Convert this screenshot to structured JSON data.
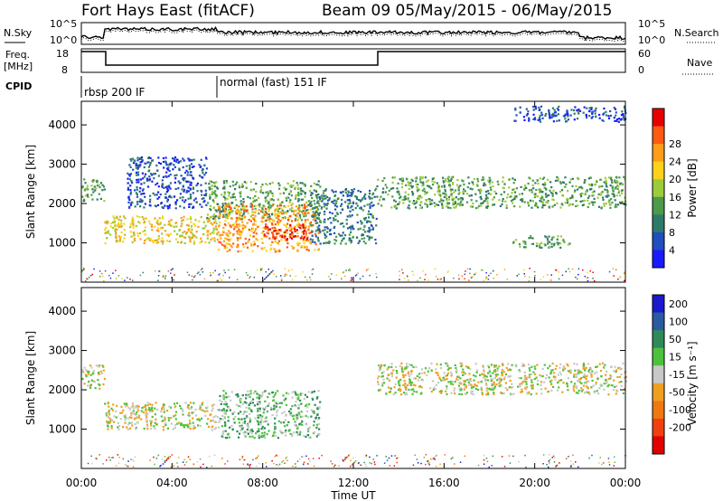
{
  "header": {
    "station": "Fort Hays East (fitACF)",
    "beam_info": "Beam 09 05/May/2015 - 06/May/2015"
  },
  "panels": {
    "nsky_label": "N.Sky",
    "nsearch_label": "N.Search",
    "freq_label_top": "Freq.",
    "freq_label_unit": "[MHz]",
    "nave_label": "Nave",
    "cpid_label": "CPID",
    "nsky_ticks": [
      "10^5",
      "10^0"
    ],
    "nsearch_ticks": [
      "10^5",
      "10^0"
    ],
    "freq_ticks": [
      "18",
      "8"
    ],
    "nave_ticks": [
      "60",
      "0"
    ],
    "cpid_modes": [
      {
        "label": "rbsp 200 IF",
        "start_h": 0,
        "end_h": 6
      },
      {
        "label": "normal (fast) 151 IF",
        "start_h": 6,
        "end_h": 24
      }
    ]
  },
  "chart_data": [
    {
      "type": "heatmap",
      "title": "Power",
      "ylabel": "Slant Range [km]",
      "xlabel": "",
      "xlim": [
        0,
        24
      ],
      "ylim": [
        0,
        4600
      ],
      "y_ticks": [
        1000,
        2000,
        3000,
        4000
      ],
      "colorbar": {
        "label": "Power [dB]",
        "ticks": [
          "4",
          "8",
          "12",
          "16",
          "20",
          "24",
          "28"
        ],
        "colors": [
          "#1a1aff",
          "#1f4fbf",
          "#2e7a6a",
          "#4a9a4a",
          "#9ccb3b",
          "#ffd21a",
          "#ff9c1a",
          "#ff5a10",
          "#e60000"
        ]
      },
      "regions": [
        {
          "x": [
            0.0,
            1.0
          ],
          "y": [
            2050,
            2650
          ],
          "level": "mid"
        },
        {
          "x": [
            1.0,
            6.0
          ],
          "y": [
            1000,
            1700
          ],
          "level": "mid-high"
        },
        {
          "x": [
            2.0,
            5.5
          ],
          "y": [
            1900,
            3200
          ],
          "level": "low"
        },
        {
          "x": [
            5.5,
            10.5
          ],
          "y": [
            1600,
            2600
          ],
          "level": "mid"
        },
        {
          "x": [
            6.0,
            10.5
          ],
          "y": [
            800,
            2000
          ],
          "level": "high"
        },
        {
          "x": [
            8.0,
            10.0
          ],
          "y": [
            1100,
            1500
          ],
          "level": "peak"
        },
        {
          "x": [
            10.0,
            13.0
          ],
          "y": [
            1000,
            2400
          ],
          "level": "low-mid"
        },
        {
          "x": [
            13.0,
            24.0
          ],
          "y": [
            1900,
            2700
          ],
          "level": "mid"
        },
        {
          "x": [
            19.0,
            21.5
          ],
          "y": [
            900,
            1200
          ],
          "level": "mid"
        },
        {
          "x": [
            19.0,
            24.0
          ],
          "y": [
            4100,
            4500
          ],
          "level": "low"
        }
      ]
    },
    {
      "type": "heatmap",
      "title": "Velocity",
      "ylabel": "Slant Range [km]",
      "xlabel": "Time UT",
      "xlim": [
        0,
        24
      ],
      "ylim": [
        0,
        4600
      ],
      "x_ticks": [
        "00:00",
        "04:00",
        "08:00",
        "12:00",
        "16:00",
        "20:00",
        "00:00"
      ],
      "y_ticks": [
        1000,
        2000,
        3000,
        4000
      ],
      "colorbar": {
        "label": "Velocity [m s⁻¹]",
        "ticks": [
          "200",
          "100",
          "50",
          "15",
          "-15",
          "-50",
          "-100",
          "-200"
        ],
        "colors": [
          "#1a1acc",
          "#2a5aa0",
          "#2e8a5a",
          "#4cc23c",
          "#c8c8c8",
          "#f0a020",
          "#f07810",
          "#f04010",
          "#e00000"
        ]
      },
      "regions": [
        {
          "x": [
            0.0,
            1.0
          ],
          "y": [
            2050,
            2650
          ],
          "level": "ground"
        },
        {
          "x": [
            1.0,
            6.0
          ],
          "y": [
            1000,
            1700
          ],
          "level": "ground"
        },
        {
          "x": [
            6.0,
            10.5
          ],
          "y": [
            800,
            2000
          ],
          "level": "positive"
        },
        {
          "x": [
            13.0,
            24.0
          ],
          "y": [
            1900,
            2700
          ],
          "level": "ground"
        }
      ]
    }
  ]
}
